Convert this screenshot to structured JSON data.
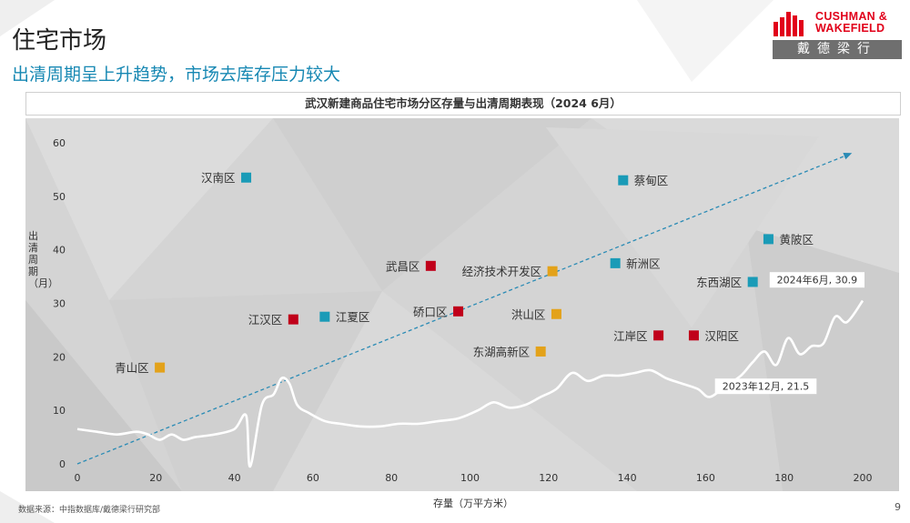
{
  "header": {
    "title": "住宅市场",
    "subtitle": "出清周期呈上升趋势，市场去库存压力较大",
    "logo_text_line1": "CUSHMAN &",
    "logo_text_line2": "WAKEFIELD",
    "logo_cn": "戴德梁行"
  },
  "footer": {
    "source": "数据来源：中指数据库/戴德梁行研究部",
    "page_number": "9"
  },
  "colors": {
    "accent_blue": "#1788b3",
    "teal_marker": "#1a9bb7",
    "red_marker": "#c0001a",
    "orange_marker": "#e3a21a",
    "trend_arrow": "#2a8bb5",
    "line": "#ffffff",
    "brand_red": "#e1001a"
  },
  "chart_data": {
    "type": "scatter",
    "title": "武汉新建商品住宅市场分区存量与出清周期表现（2024 6月）",
    "xlabel": "存量（万平方米）",
    "ylabel": "出清周期（月）",
    "xlim": [
      0,
      200
    ],
    "ylim": [
      0,
      60
    ],
    "x_ticks": [
      0,
      20,
      40,
      60,
      80,
      100,
      120,
      140,
      160,
      180,
      200
    ],
    "y_ticks": [
      0,
      10,
      20,
      30,
      40,
      50,
      60
    ],
    "grid": false,
    "points": [
      {
        "name": "汉南区",
        "x": 43,
        "y": 53.5,
        "group": "teal",
        "label_side": "left"
      },
      {
        "name": "蔡甸区",
        "x": 139,
        "y": 53,
        "group": "teal",
        "label_side": "right"
      },
      {
        "name": "黄陂区",
        "x": 176,
        "y": 42,
        "group": "teal",
        "label_side": "right"
      },
      {
        "name": "新洲区",
        "x": 137,
        "y": 37.5,
        "group": "teal",
        "label_side": "right"
      },
      {
        "name": "东西湖区",
        "x": 172,
        "y": 34,
        "group": "teal",
        "label_side": "left"
      },
      {
        "name": "江夏区",
        "x": 63,
        "y": 27.5,
        "group": "teal",
        "label_side": "right"
      },
      {
        "name": "武昌区",
        "x": 90,
        "y": 37,
        "group": "red",
        "label_side": "left"
      },
      {
        "name": "江汉区",
        "x": 55,
        "y": 27,
        "group": "red",
        "label_side": "left"
      },
      {
        "name": "硚口区",
        "x": 97,
        "y": 28.5,
        "group": "red",
        "label_side": "left"
      },
      {
        "name": "江岸区",
        "x": 148,
        "y": 24,
        "group": "red",
        "label_side": "left"
      },
      {
        "name": "汉阳区",
        "x": 157,
        "y": 24,
        "group": "red",
        "label_side": "right"
      },
      {
        "name": "经济技术开发区",
        "x": 121,
        "y": 36,
        "group": "orange",
        "label_side": "left"
      },
      {
        "name": "洪山区",
        "x": 122,
        "y": 28,
        "group": "orange",
        "label_side": "left"
      },
      {
        "name": "东湖高新区",
        "x": 118,
        "y": 21,
        "group": "orange",
        "label_side": "left"
      },
      {
        "name": "青山区",
        "x": 21,
        "y": 18,
        "group": "orange",
        "label_side": "left"
      }
    ],
    "trend_arrow": {
      "from": [
        0,
        0
      ],
      "to": [
        197,
        58
      ]
    },
    "trend_line": {
      "x": [
        0,
        5,
        10,
        15,
        18,
        21,
        24,
        27,
        30,
        35,
        40,
        43,
        44,
        47,
        50,
        52,
        54,
        56,
        59,
        63,
        67,
        72,
        77,
        82,
        87,
        92,
        97,
        102,
        106,
        110,
        114,
        118,
        122,
        126,
        130,
        134,
        138,
        142,
        146,
        150,
        154,
        158,
        161,
        165,
        169,
        172,
        175,
        178,
        181,
        184,
        187,
        190,
        193,
        196,
        200
      ],
      "y": [
        6.5,
        6,
        5.5,
        6,
        5.5,
        4.5,
        5.5,
        4.5,
        5,
        5.5,
        6.5,
        9,
        -0.5,
        11,
        13,
        16,
        15,
        11,
        9.5,
        8,
        7.5,
        7,
        7,
        7.5,
        7.5,
        8,
        8.5,
        10,
        11.5,
        10.5,
        11,
        12.5,
        14,
        17,
        15.5,
        16.5,
        16.5,
        17,
        17.5,
        16,
        15,
        14,
        12.5,
        14.5,
        16.5,
        19,
        21,
        18.5,
        23.5,
        20.5,
        22,
        22.5,
        27.5,
        26.5,
        30.5
      ]
    },
    "annotations": [
      {
        "text": "2024年6月, 30.9",
        "x": 200,
        "y": 30.9
      },
      {
        "text": "2023年12月, 21.5",
        "x": 173,
        "y": 14.5
      }
    ]
  }
}
